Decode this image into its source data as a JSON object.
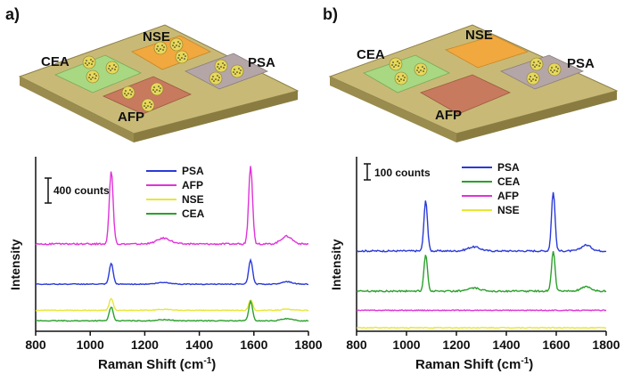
{
  "panels": [
    {
      "label": "a)",
      "chips": {
        "cea": "CEA",
        "nse": "NSE",
        "psa": "PSA",
        "afp": "AFP"
      },
      "scale_bar_label": "400 counts"
    },
    {
      "label": "b)",
      "chips": {
        "cea": "CEA",
        "nse": "NSE",
        "psa": "PSA",
        "afp": "AFP"
      },
      "scale_bar_label": "100 counts"
    }
  ],
  "colors": {
    "board_top": "#c8ba76",
    "board_side": "#9a8c4e",
    "CEA": "#2ba02b",
    "PSA": "#2a3ad8",
    "AFP": "#e033d8",
    "NSE": "#e8e636",
    "chip_cea": "#a8d882",
    "chip_nse": "#f1a83e",
    "chip_psa": "#b4a6a6",
    "chip_afp": "#c87a5e",
    "bead": "#e6d85a",
    "bead_dot": "#222222"
  },
  "chart_data": [
    {
      "type": "line",
      "panel": "a)",
      "xlabel": "Raman Shift (cm",
      "xlabel_sup": "-1",
      "xlabel_close": ")",
      "ylabel": "Intensity",
      "xlim": [
        800,
        1800
      ],
      "ylim": [
        0,
        1000
      ],
      "xticks": [
        "800",
        "1000",
        "1200",
        "1400",
        "1600",
        "1800"
      ],
      "y_ticks_shown": false,
      "scale_bar_counts": 400,
      "legend_position": "top-right",
      "peaks": [
        1077,
        1588
      ],
      "series": [
        {
          "name": "PSA",
          "baseline": 270,
          "peak_heights": [
            120,
            140
          ]
        },
        {
          "name": "AFP",
          "baseline": 500,
          "peak_heights": [
            420,
            450
          ]
        },
        {
          "name": "NSE",
          "baseline": 120,
          "peak_heights": [
            70,
            60
          ]
        },
        {
          "name": "CEA",
          "baseline": 60,
          "peak_heights": [
            80,
            110
          ]
        }
      ]
    },
    {
      "type": "line",
      "panel": "b)",
      "xlabel": "Raman Shift (cm",
      "xlabel_sup": "-1",
      "xlabel_close": ")",
      "ylabel": "Intensity",
      "xlim": [
        800,
        1800
      ],
      "ylim": [
        0,
        1000
      ],
      "xticks": [
        "800",
        "1000",
        "1200",
        "1400",
        "1600",
        "1800"
      ],
      "y_ticks_shown": false,
      "scale_bar_counts": 100,
      "legend_position": "top-center",
      "peaks": [
        1077,
        1588
      ],
      "series": [
        {
          "name": "PSA",
          "baseline": 460,
          "peak_heights": [
            290,
            340
          ]
        },
        {
          "name": "CEA",
          "baseline": 230,
          "peak_heights": [
            210,
            230
          ]
        },
        {
          "name": "AFP",
          "baseline": 120,
          "peak_heights": [
            0,
            0
          ]
        },
        {
          "name": "NSE",
          "baseline": 20,
          "peak_heights": [
            0,
            0
          ]
        }
      ]
    }
  ]
}
